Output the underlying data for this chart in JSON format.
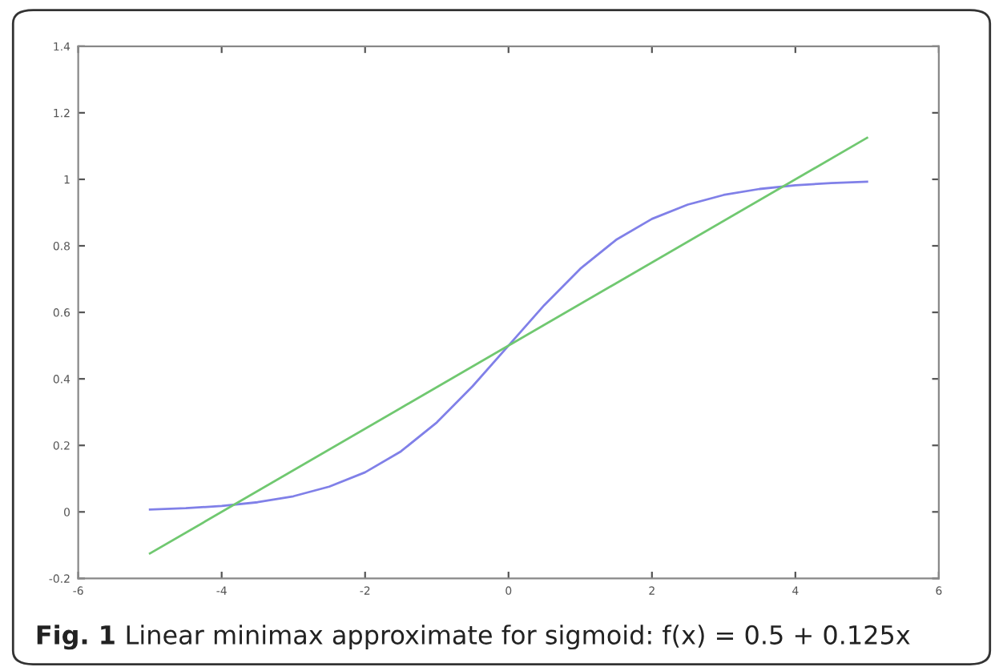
{
  "chart_data": {
    "type": "line",
    "annotations": [
      "Fig. 1",
      "Linear minimax approximate for sigmoid: f(x) = 0.5 + 0.125x"
    ],
    "series": [
      {
        "color": "#8080e8",
        "x": [
          -5,
          -4.5,
          -4,
          -3.5,
          -3,
          -2.5,
          -2,
          -1.5,
          -1,
          -0.5,
          0,
          0.5,
          1,
          1.5,
          2,
          2.5,
          3,
          3.5,
          4,
          4.5,
          5
        ],
        "values": [
          0.007,
          0.011,
          0.018,
          0.029,
          0.047,
          0.076,
          0.119,
          0.182,
          0.269,
          0.378,
          0.5,
          0.622,
          0.731,
          0.818,
          0.881,
          0.924,
          0.953,
          0.971,
          0.982,
          0.989,
          0.993
        ]
      },
      {
        "color": "#70c870",
        "x": [
          -5,
          5
        ],
        "values": [
          -0.125,
          1.125
        ]
      }
    ],
    "xlim": [
      -6,
      6
    ],
    "xticks": [
      -6,
      -4,
      -2,
      0,
      2,
      4,
      6
    ],
    "ylim": [
      -0.2,
      1.4
    ],
    "yticks": [
      -0.2,
      0,
      0.2,
      0.4,
      0.6,
      0.8,
      1,
      1.2,
      1.4
    ],
    "grid": false,
    "legend": false
  }
}
